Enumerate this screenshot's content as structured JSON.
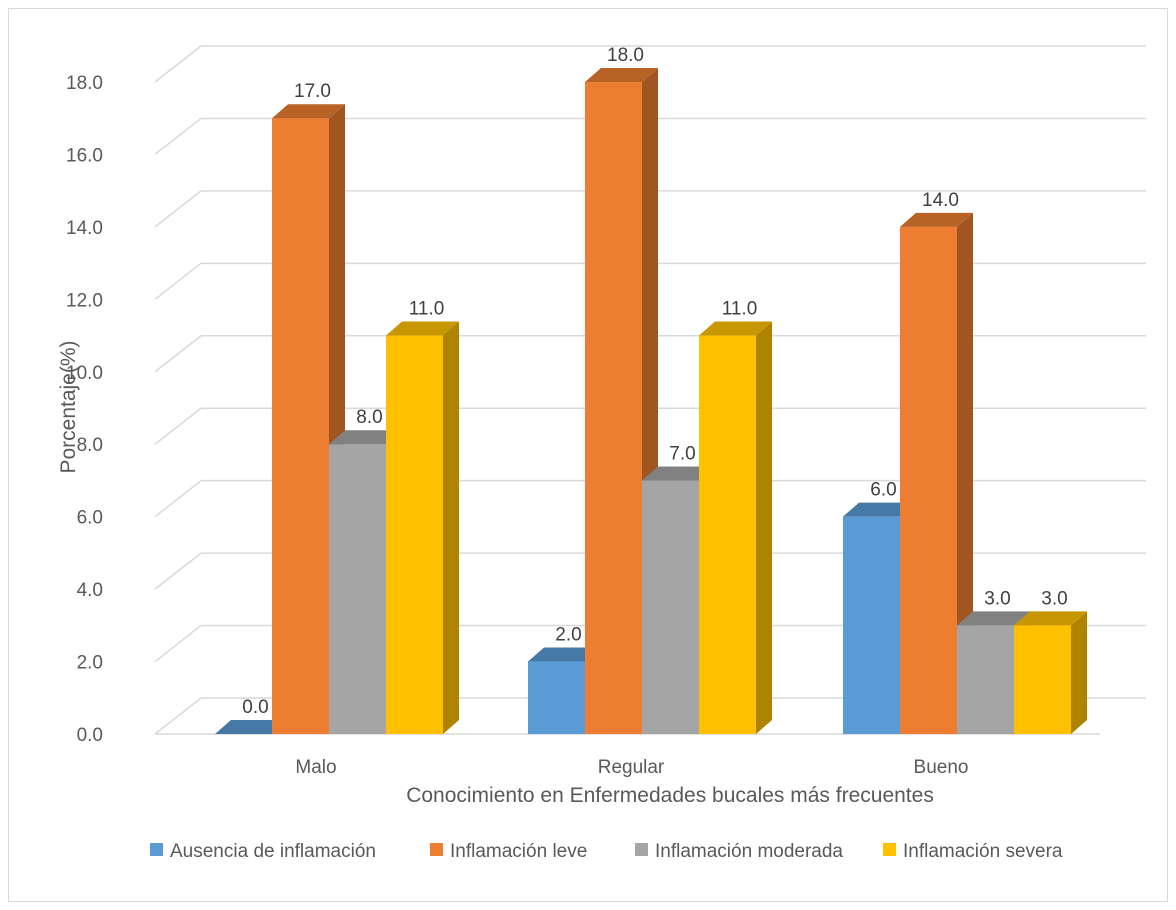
{
  "chart_data": {
    "type": "bar",
    "style": "3d-clustered-column",
    "title": "",
    "xlabel": "Conocimiento en Enfermedades bucales más frecuentes",
    "ylabel": "Porcentaje(%)",
    "categories": [
      "Malo",
      "Regular",
      "Bueno"
    ],
    "ylim": [
      0,
      18
    ],
    "yticks": [
      "0.0",
      "2.0",
      "4.0",
      "6.0",
      "8.0",
      "10.0",
      "12.0",
      "14.0",
      "16.0",
      "18.0"
    ],
    "grid": true,
    "legend_position": "bottom",
    "series": [
      {
        "name": "Ausencia de inflamación",
        "values": [
          0.0,
          2.0,
          6.0
        ],
        "labels": [
          "0.0",
          "2.0",
          "6.0"
        ],
        "color": "#5b9bd5"
      },
      {
        "name": "Inflamación leve",
        "values": [
          17.0,
          18.0,
          14.0
        ],
        "labels": [
          "17.0",
          "18.0",
          "14.0"
        ],
        "color": "#ed7d31"
      },
      {
        "name": "Inflamación moderada",
        "values": [
          8.0,
          7.0,
          3.0
        ],
        "labels": [
          "8.0",
          "7.0",
          "3.0"
        ],
        "color": "#a5a5a5"
      },
      {
        "name": "Inflamación severa",
        "values": [
          11.0,
          11.0,
          3.0
        ],
        "labels": [
          "11.0",
          "11.0",
          "3.0"
        ],
        "color": "#ffc000"
      }
    ]
  }
}
